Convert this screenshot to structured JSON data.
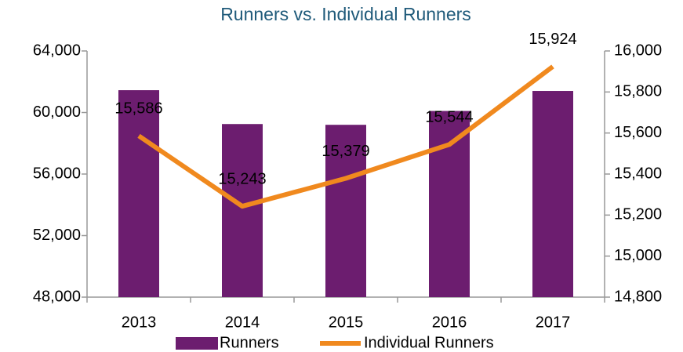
{
  "chart_data": {
    "type": "bar-line",
    "title": "Runners vs. Individual Runners",
    "categories": [
      "2013",
      "2014",
      "2015",
      "2016",
      "2017"
    ],
    "series": [
      {
        "name": "Runners",
        "type": "bar",
        "color": "#6c1d6f",
        "values": [
          61450,
          59250,
          59200,
          60100,
          61400
        ]
      },
      {
        "name": "Individual Runners",
        "type": "line",
        "axis": "y2",
        "color": "#f0891e",
        "values": [
          15586,
          15243,
          15379,
          15544,
          15924
        ],
        "value_labels": [
          "15,586",
          "15,243",
          "15,379",
          "15,544",
          "15,924"
        ]
      }
    ],
    "ylim": [
      48000,
      64000
    ],
    "yticks": [
      {
        "value": 48000,
        "label": "48,000"
      },
      {
        "value": 52000,
        "label": "52,000"
      },
      {
        "value": 56000,
        "label": "56,000"
      },
      {
        "value": 60000,
        "label": "60,000"
      },
      {
        "value": 64000,
        "label": "64,000"
      }
    ],
    "y2lim": [
      14800,
      16000
    ],
    "y2ticks": [
      {
        "value": 14800,
        "label": "14,800"
      },
      {
        "value": 15000,
        "label": "15,000"
      },
      {
        "value": 15200,
        "label": "15,200"
      },
      {
        "value": 15400,
        "label": "15,400"
      },
      {
        "value": 15600,
        "label": "15,600"
      },
      {
        "value": 15800,
        "label": "15,800"
      },
      {
        "value": 16000,
        "label": "16,000"
      }
    ],
    "grid": false,
    "legend": "bottom"
  }
}
